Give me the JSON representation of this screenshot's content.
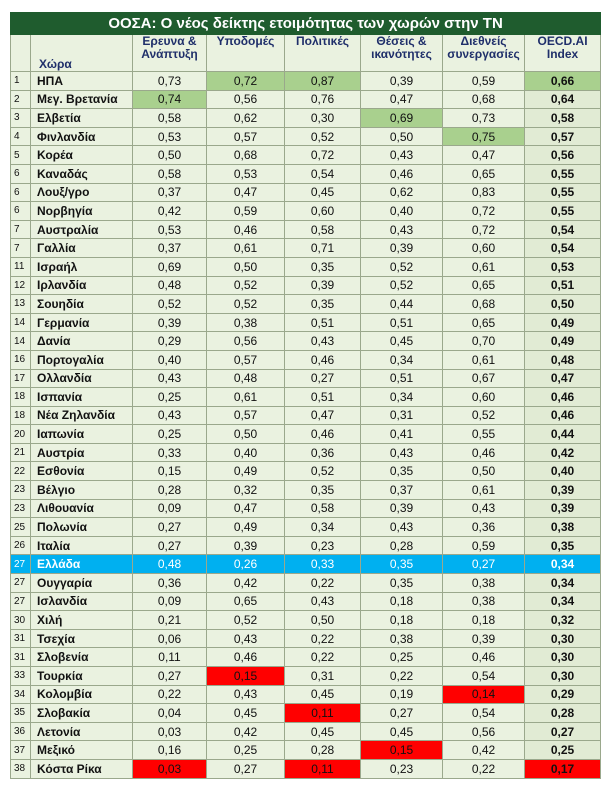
{
  "title": "ΟΟΣΑ: Ο νέος δείκτης ετοιμότητας των χωρών στην ΤΝ",
  "table": {
    "header": [
      "Χώρα",
      "Ερευνα & Ανάπτυξη",
      "Υποδομές",
      "Πολιτικές",
      "Θέσεις & ικανότητες",
      "Διεθνείς συνεργασίες",
      "OECD.AI Index"
    ],
    "rows": [
      [
        "1",
        "ΗΠΑ",
        "0,73",
        "0,72",
        "0,87",
        "0,39",
        "0,59",
        "0,66"
      ],
      [
        "2",
        "Μεγ. Βρετανία",
        "0,74",
        "0,56",
        "0,76",
        "0,47",
        "0,68",
        "0,64"
      ],
      [
        "3",
        "Ελβετία",
        "0,58",
        "0,62",
        "0,30",
        "0,69",
        "0,73",
        "0,58"
      ],
      [
        "4",
        "Φινλανδία",
        "0,53",
        "0,57",
        "0,52",
        "0,50",
        "0,75",
        "0,57"
      ],
      [
        "5",
        "Κορέα",
        "0,50",
        "0,68",
        "0,72",
        "0,43",
        "0,47",
        "0,56"
      ],
      [
        "6",
        "Καναδάς",
        "0,58",
        "0,53",
        "0,54",
        "0,46",
        "0,65",
        "0,55"
      ],
      [
        "6",
        "Λουξ/γρο",
        "0,37",
        "0,47",
        "0,45",
        "0,62",
        "0,83",
        "0,55"
      ],
      [
        "6",
        "Νορβηγία",
        "0,42",
        "0,59",
        "0,60",
        "0,40",
        "0,72",
        "0,55"
      ],
      [
        "7",
        "Αυστραλία",
        "0,53",
        "0,46",
        "0,58",
        "0,43",
        "0,72",
        "0,54"
      ],
      [
        "7",
        "Γαλλία",
        "0,37",
        "0,61",
        "0,71",
        "0,39",
        "0,60",
        "0,54"
      ],
      [
        "11",
        "Ισραήλ",
        "0,69",
        "0,50",
        "0,35",
        "0,52",
        "0,61",
        "0,53"
      ],
      [
        "12",
        "Ιρλανδία",
        "0,48",
        "0,52",
        "0,39",
        "0,52",
        "0,65",
        "0,51"
      ],
      [
        "13",
        "Σουηδία",
        "0,52",
        "0,52",
        "0,35",
        "0,44",
        "0,68",
        "0,50"
      ],
      [
        "14",
        "Γερμανία",
        "0,39",
        "0,38",
        "0,51",
        "0,51",
        "0,65",
        "0,49"
      ],
      [
        "14",
        "Δανία",
        "0,29",
        "0,56",
        "0,43",
        "0,45",
        "0,70",
        "0,49"
      ],
      [
        "16",
        "Πορτογαλία",
        "0,40",
        "0,57",
        "0,46",
        "0,34",
        "0,61",
        "0,48"
      ],
      [
        "17",
        "Ολλανδία",
        "0,43",
        "0,48",
        "0,27",
        "0,51",
        "0,67",
        "0,47"
      ],
      [
        "18",
        "Ισπανία",
        "0,25",
        "0,61",
        "0,51",
        "0,34",
        "0,60",
        "0,46"
      ],
      [
        "18",
        "Νέα Ζηλανδία",
        "0,43",
        "0,57",
        "0,47",
        "0,31",
        "0,52",
        "0,46"
      ],
      [
        "20",
        "Ιαπωνία",
        "0,25",
        "0,50",
        "0,46",
        "0,41",
        "0,55",
        "0,44"
      ],
      [
        "21",
        "Αυστρία",
        "0,33",
        "0,40",
        "0,36",
        "0,43",
        "0,46",
        "0,42"
      ],
      [
        "22",
        "Εσθονία",
        "0,15",
        "0,49",
        "0,52",
        "0,35",
        "0,50",
        "0,40"
      ],
      [
        "23",
        "Βέλγιο",
        "0,28",
        "0,32",
        "0,35",
        "0,37",
        "0,61",
        "0,39"
      ],
      [
        "23",
        "Λιθουανία",
        "0,09",
        "0,47",
        "0,58",
        "0,39",
        "0,43",
        "0,39"
      ],
      [
        "25",
        "Πολωνία",
        "0,27",
        "0,49",
        "0,34",
        "0,43",
        "0,36",
        "0,38"
      ],
      [
        "26",
        "Ιταλία",
        "0,27",
        "0,39",
        "0,23",
        "0,28",
        "0,59",
        "0,35"
      ],
      [
        "27",
        "Ελλάδα",
        "0,48",
        "0,26",
        "0,33",
        "0,35",
        "0,27",
        "0,34"
      ],
      [
        "27",
        "Ουγγαρία",
        "0,36",
        "0,42",
        "0,22",
        "0,35",
        "0,38",
        "0,34"
      ],
      [
        "27",
        "Ισλανδία",
        "0,09",
        "0,65",
        "0,43",
        "0,18",
        "0,38",
        "0,34"
      ],
      [
        "30",
        "Χιλή",
        "0,21",
        "0,52",
        "0,50",
        "0,18",
        "0,18",
        "0,32"
      ],
      [
        "31",
        "Τσεχία",
        "0,06",
        "0,43",
        "0,22",
        "0,38",
        "0,39",
        "0,30"
      ],
      [
        "31",
        "Σλοβενία",
        "0,11",
        "0,46",
        "0,22",
        "0,25",
        "0,46",
        "0,30"
      ],
      [
        "33",
        "Τουρκία",
        "0,27",
        "0,15",
        "0,31",
        "0,22",
        "0,54",
        "0,30"
      ],
      [
        "34",
        "Κολομβία",
        "0,22",
        "0,43",
        "0,45",
        "0,19",
        "0,14",
        "0,29"
      ],
      [
        "35",
        "Σλοβακία",
        "0,04",
        "0,45",
        "0,11",
        "0,27",
        "0,54",
        "0,28"
      ],
      [
        "36",
        "Λετονία",
        "0,03",
        "0,42",
        "0,45",
        "0,45",
        "0,56",
        "0,27"
      ],
      [
        "37",
        "Μεξικό",
        "0,16",
        "0,25",
        "0,28",
        "0,15",
        "0,42",
        "0,25"
      ],
      [
        "38",
        "Κόστα Ρίκα",
        "0,03",
        "0,27",
        "0,11",
        "0,23",
        "0,22",
        "0,17"
      ]
    ]
  }
}
